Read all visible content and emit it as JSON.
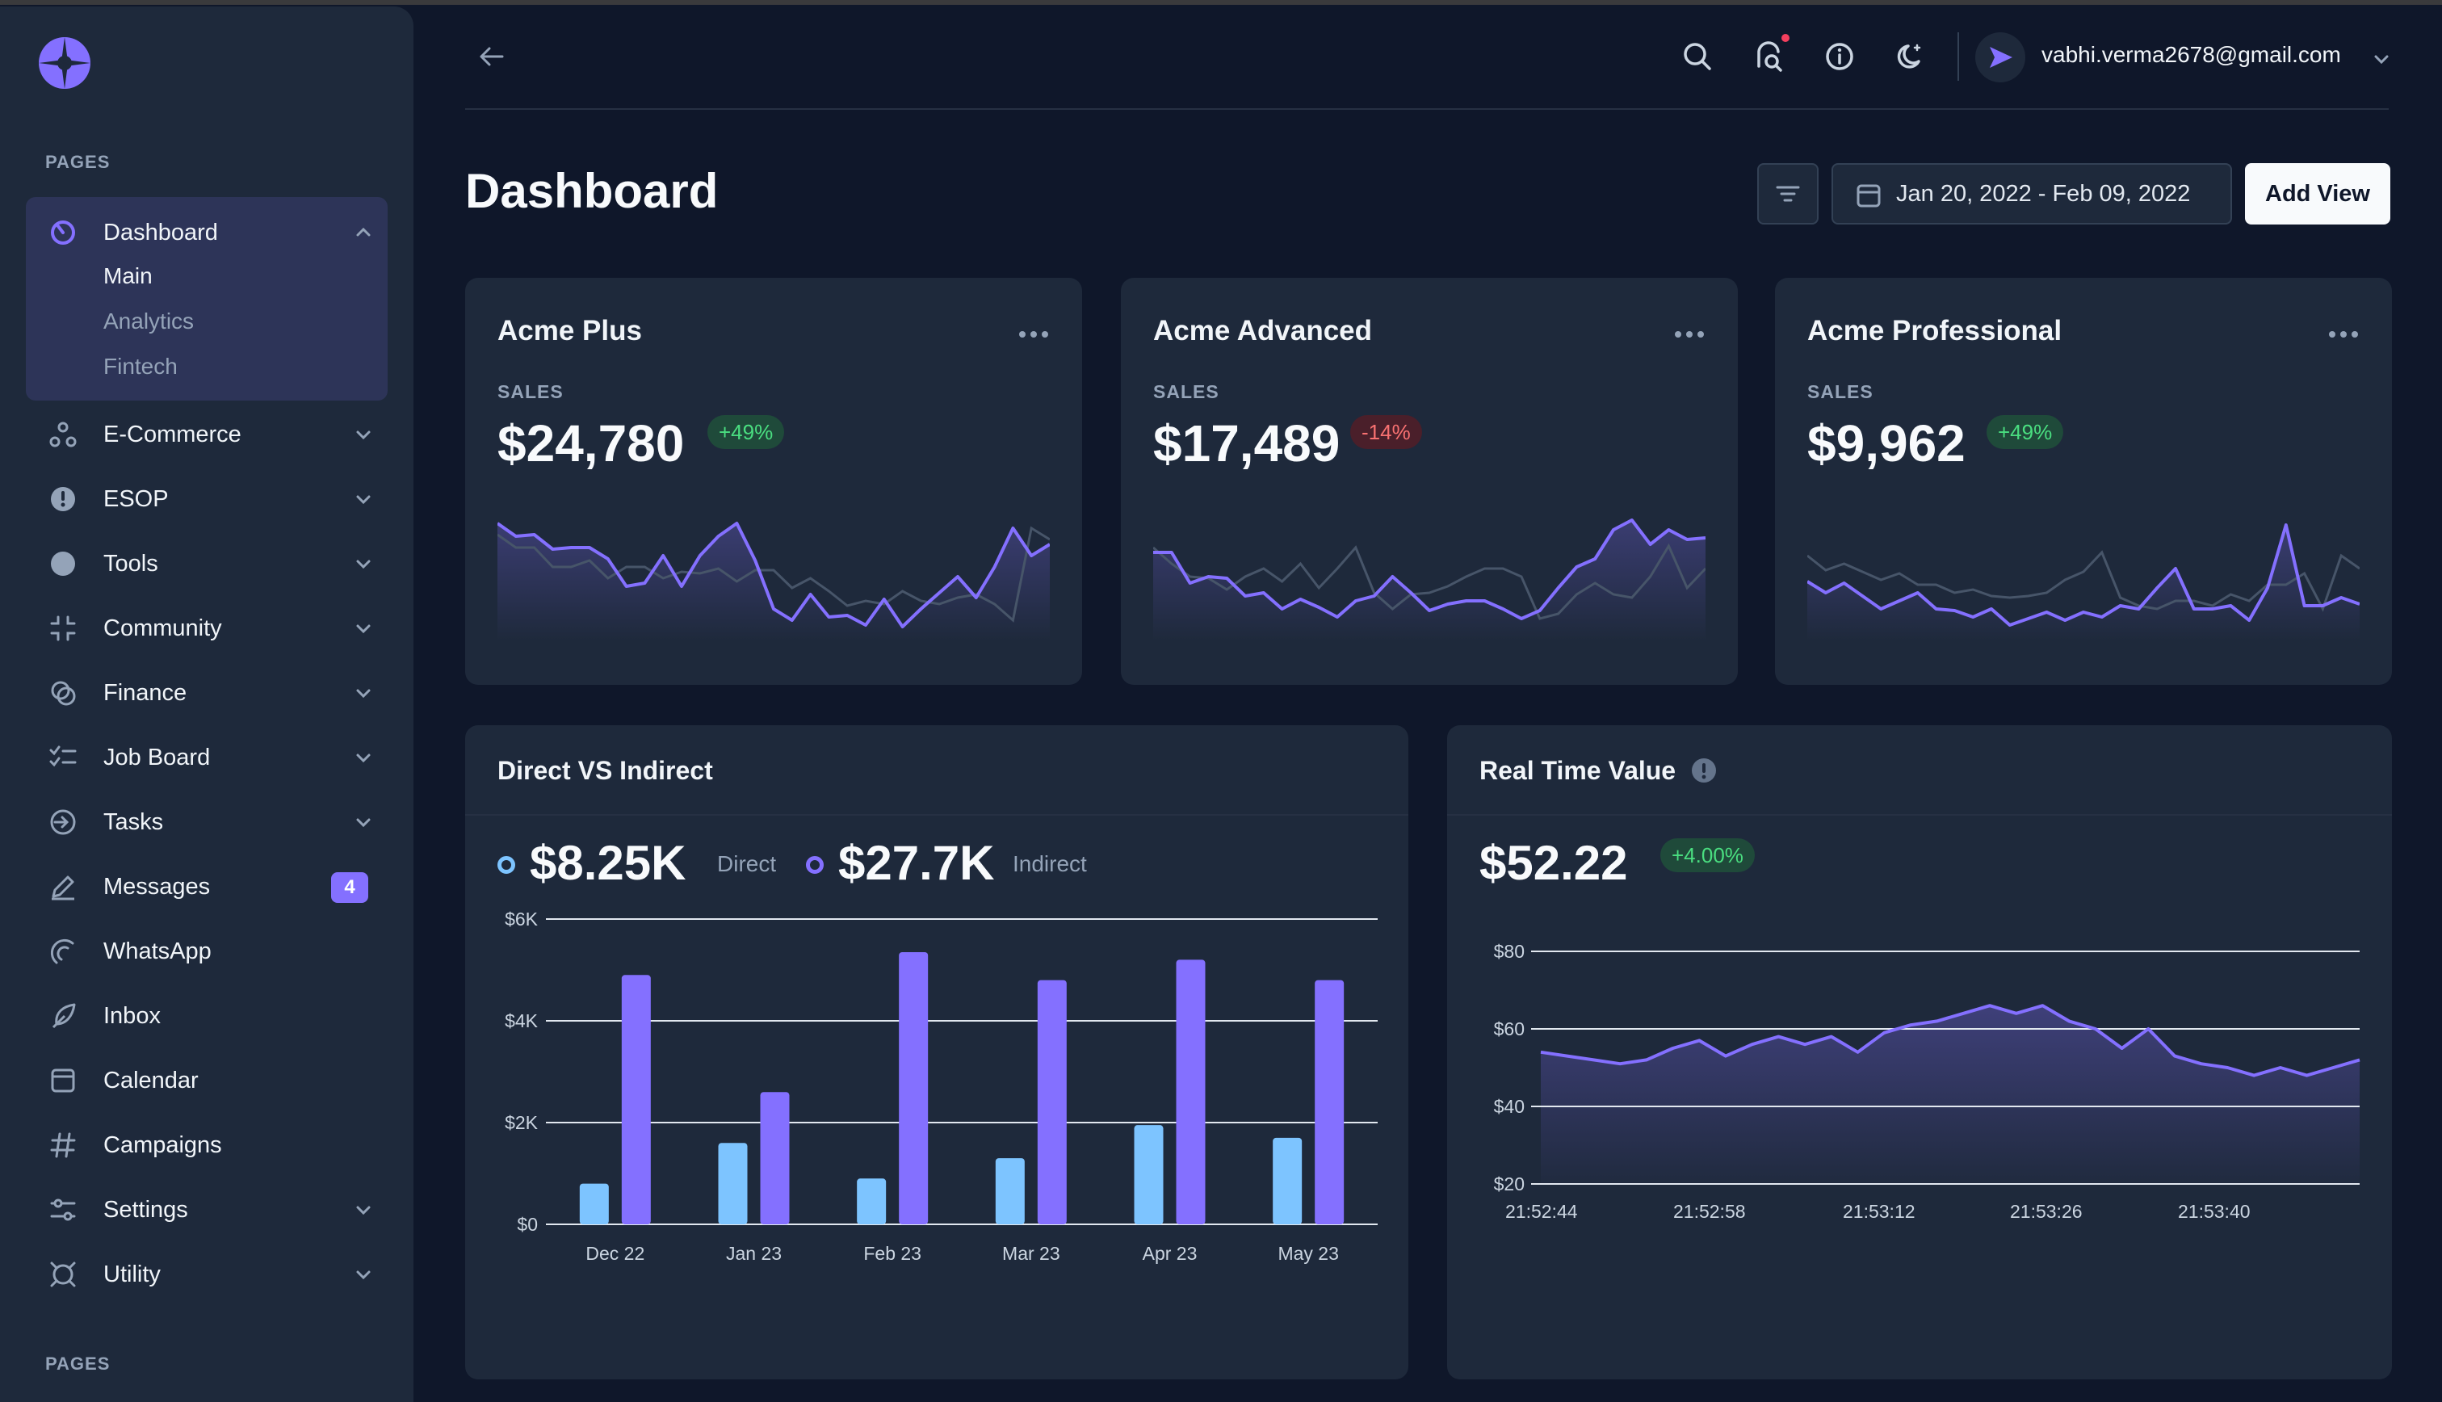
{
  "sidebar": {
    "section_top": "PAGES",
    "section_bottom": "PAGES",
    "dashboard": {
      "label": "Dashboard",
      "sub": [
        "Main",
        "Analytics",
        "Fintech"
      ]
    },
    "items": [
      {
        "label": "E-Commerce"
      },
      {
        "label": "ESOP"
      },
      {
        "label": "Tools"
      },
      {
        "label": "Community"
      },
      {
        "label": "Finance"
      },
      {
        "label": "Job Board"
      },
      {
        "label": "Tasks"
      },
      {
        "label": "Messages",
        "badge": "4"
      },
      {
        "label": "WhatsApp"
      },
      {
        "label": "Inbox"
      },
      {
        "label": "Calendar"
      },
      {
        "label": "Campaigns"
      },
      {
        "label": "Settings"
      },
      {
        "label": "Utility"
      }
    ]
  },
  "header": {
    "user_email": "vabhi.verma2678@gmail.com"
  },
  "page": {
    "title": "Dashboard",
    "date_range": "Jan 20, 2022 - Feb 09, 2022",
    "add_view": "Add View"
  },
  "cards": [
    {
      "title": "Acme Plus",
      "sales_label": "SALES",
      "value": "$24,780",
      "change": "+49%"
    },
    {
      "title": "Acme Advanced",
      "sales_label": "SALES",
      "value": "$17,489",
      "change": "-14%"
    },
    {
      "title": "Acme Professional",
      "sales_label": "SALES",
      "value": "$9,962",
      "change": "+49%"
    }
  ],
  "direct_vs_indirect": {
    "title": "Direct VS Indirect",
    "direct_value": "$8.25K",
    "direct_label": "Direct",
    "indirect_value": "$27.7K",
    "indirect_label": "Indirect"
  },
  "real_time": {
    "title": "Real Time Value",
    "value": "$52.22",
    "change": "+4.00%"
  },
  "colors": {
    "accent": "#8470ff",
    "direct": "#7dc4ff",
    "positive": "#4ade80",
    "negative": "#f87171"
  },
  "chart_data": [
    {
      "type": "line",
      "title": "Acme Plus",
      "series": [
        {
          "name": "current",
          "values": [
            73,
            65,
            66,
            57,
            58,
            58,
            51,
            34,
            36,
            53,
            34,
            53,
            65,
            73,
            50,
            20,
            13,
            29,
            15,
            16,
            10,
            26,
            9,
            20,
            30,
            40,
            27,
            46,
            70,
            53,
            60
          ]
        },
        {
          "name": "previous",
          "values": [
            66,
            58,
            58,
            46,
            46,
            50,
            39,
            46,
            46,
            39,
            43,
            42,
            45,
            37,
            44,
            44,
            33,
            39,
            31,
            22,
            25,
            23,
            31,
            25,
            23,
            27,
            29,
            23,
            13,
            70,
            63
          ]
        }
      ],
      "ylim": [
        0,
        80
      ]
    },
    {
      "type": "line",
      "title": "Acme Advanced",
      "series": [
        {
          "name": "current",
          "values": [
            55,
            55,
            36,
            40,
            39,
            28,
            30,
            20,
            26,
            21,
            15,
            25,
            28,
            40,
            30,
            19,
            23,
            25,
            25,
            20,
            14,
            19,
            33,
            46,
            51,
            69,
            75,
            60,
            69,
            63,
            64
          ]
        },
        {
          "name": "previous",
          "values": [
            58,
            48,
            40,
            39,
            32,
            40,
            45,
            37,
            48,
            33,
            45,
            58,
            30,
            20,
            29,
            30,
            34,
            40,
            45,
            45,
            40,
            14,
            17,
            29,
            36,
            29,
            27,
            40,
            59,
            33,
            45
          ]
        }
      ],
      "ylim": [
        0,
        80
      ]
    },
    {
      "type": "line",
      "title": "Acme Professional",
      "series": [
        {
          "name": "current",
          "values": [
            37,
            30,
            36,
            28,
            20,
            25,
            30,
            20,
            19,
            15,
            20,
            10,
            14,
            18,
            13,
            18,
            15,
            22,
            20,
            33,
            45,
            20,
            20,
            22,
            13,
            33,
            72,
            22,
            22,
            27,
            23
          ]
        },
        {
          "name": "previous",
          "values": [
            53,
            44,
            48,
            43,
            38,
            42,
            35,
            35,
            30,
            32,
            28,
            27,
            28,
            30,
            38,
            43,
            55,
            27,
            22,
            20,
            25,
            25,
            22,
            29,
            25,
            35,
            35,
            42,
            20,
            53,
            45
          ]
        }
      ],
      "ylim": [
        0,
        80
      ]
    },
    {
      "type": "bar",
      "title": "Direct VS Indirect",
      "categories": [
        "Dec 22",
        "Jan 23",
        "Feb 23",
        "Mar 23",
        "Apr 23",
        "May 23"
      ],
      "series": [
        {
          "name": "Direct",
          "values": [
            800,
            1600,
            900,
            1300,
            1950,
            1700
          ]
        },
        {
          "name": "Indirect",
          "values": [
            4900,
            2600,
            5350,
            4800,
            5200,
            4800
          ]
        }
      ],
      "yticks": [
        "$0",
        "$2K",
        "$4K",
        "$6K"
      ],
      "ylim": [
        0,
        6000
      ]
    },
    {
      "type": "area",
      "title": "Real Time Value",
      "xticks": [
        "21:52:44",
        "21:52:58",
        "21:53:12",
        "21:53:26",
        "21:53:40"
      ],
      "yticks": [
        "$20",
        "$40",
        "$60",
        "$80"
      ],
      "values": [
        54,
        53,
        52,
        51,
        52,
        55,
        57,
        53,
        56,
        58,
        56,
        58,
        54,
        59,
        61,
        62,
        64,
        66,
        64,
        66,
        62,
        60,
        55,
        60,
        53,
        51,
        50,
        48,
        50,
        48,
        50,
        52
      ],
      "ylim": [
        20,
        80
      ]
    }
  ]
}
